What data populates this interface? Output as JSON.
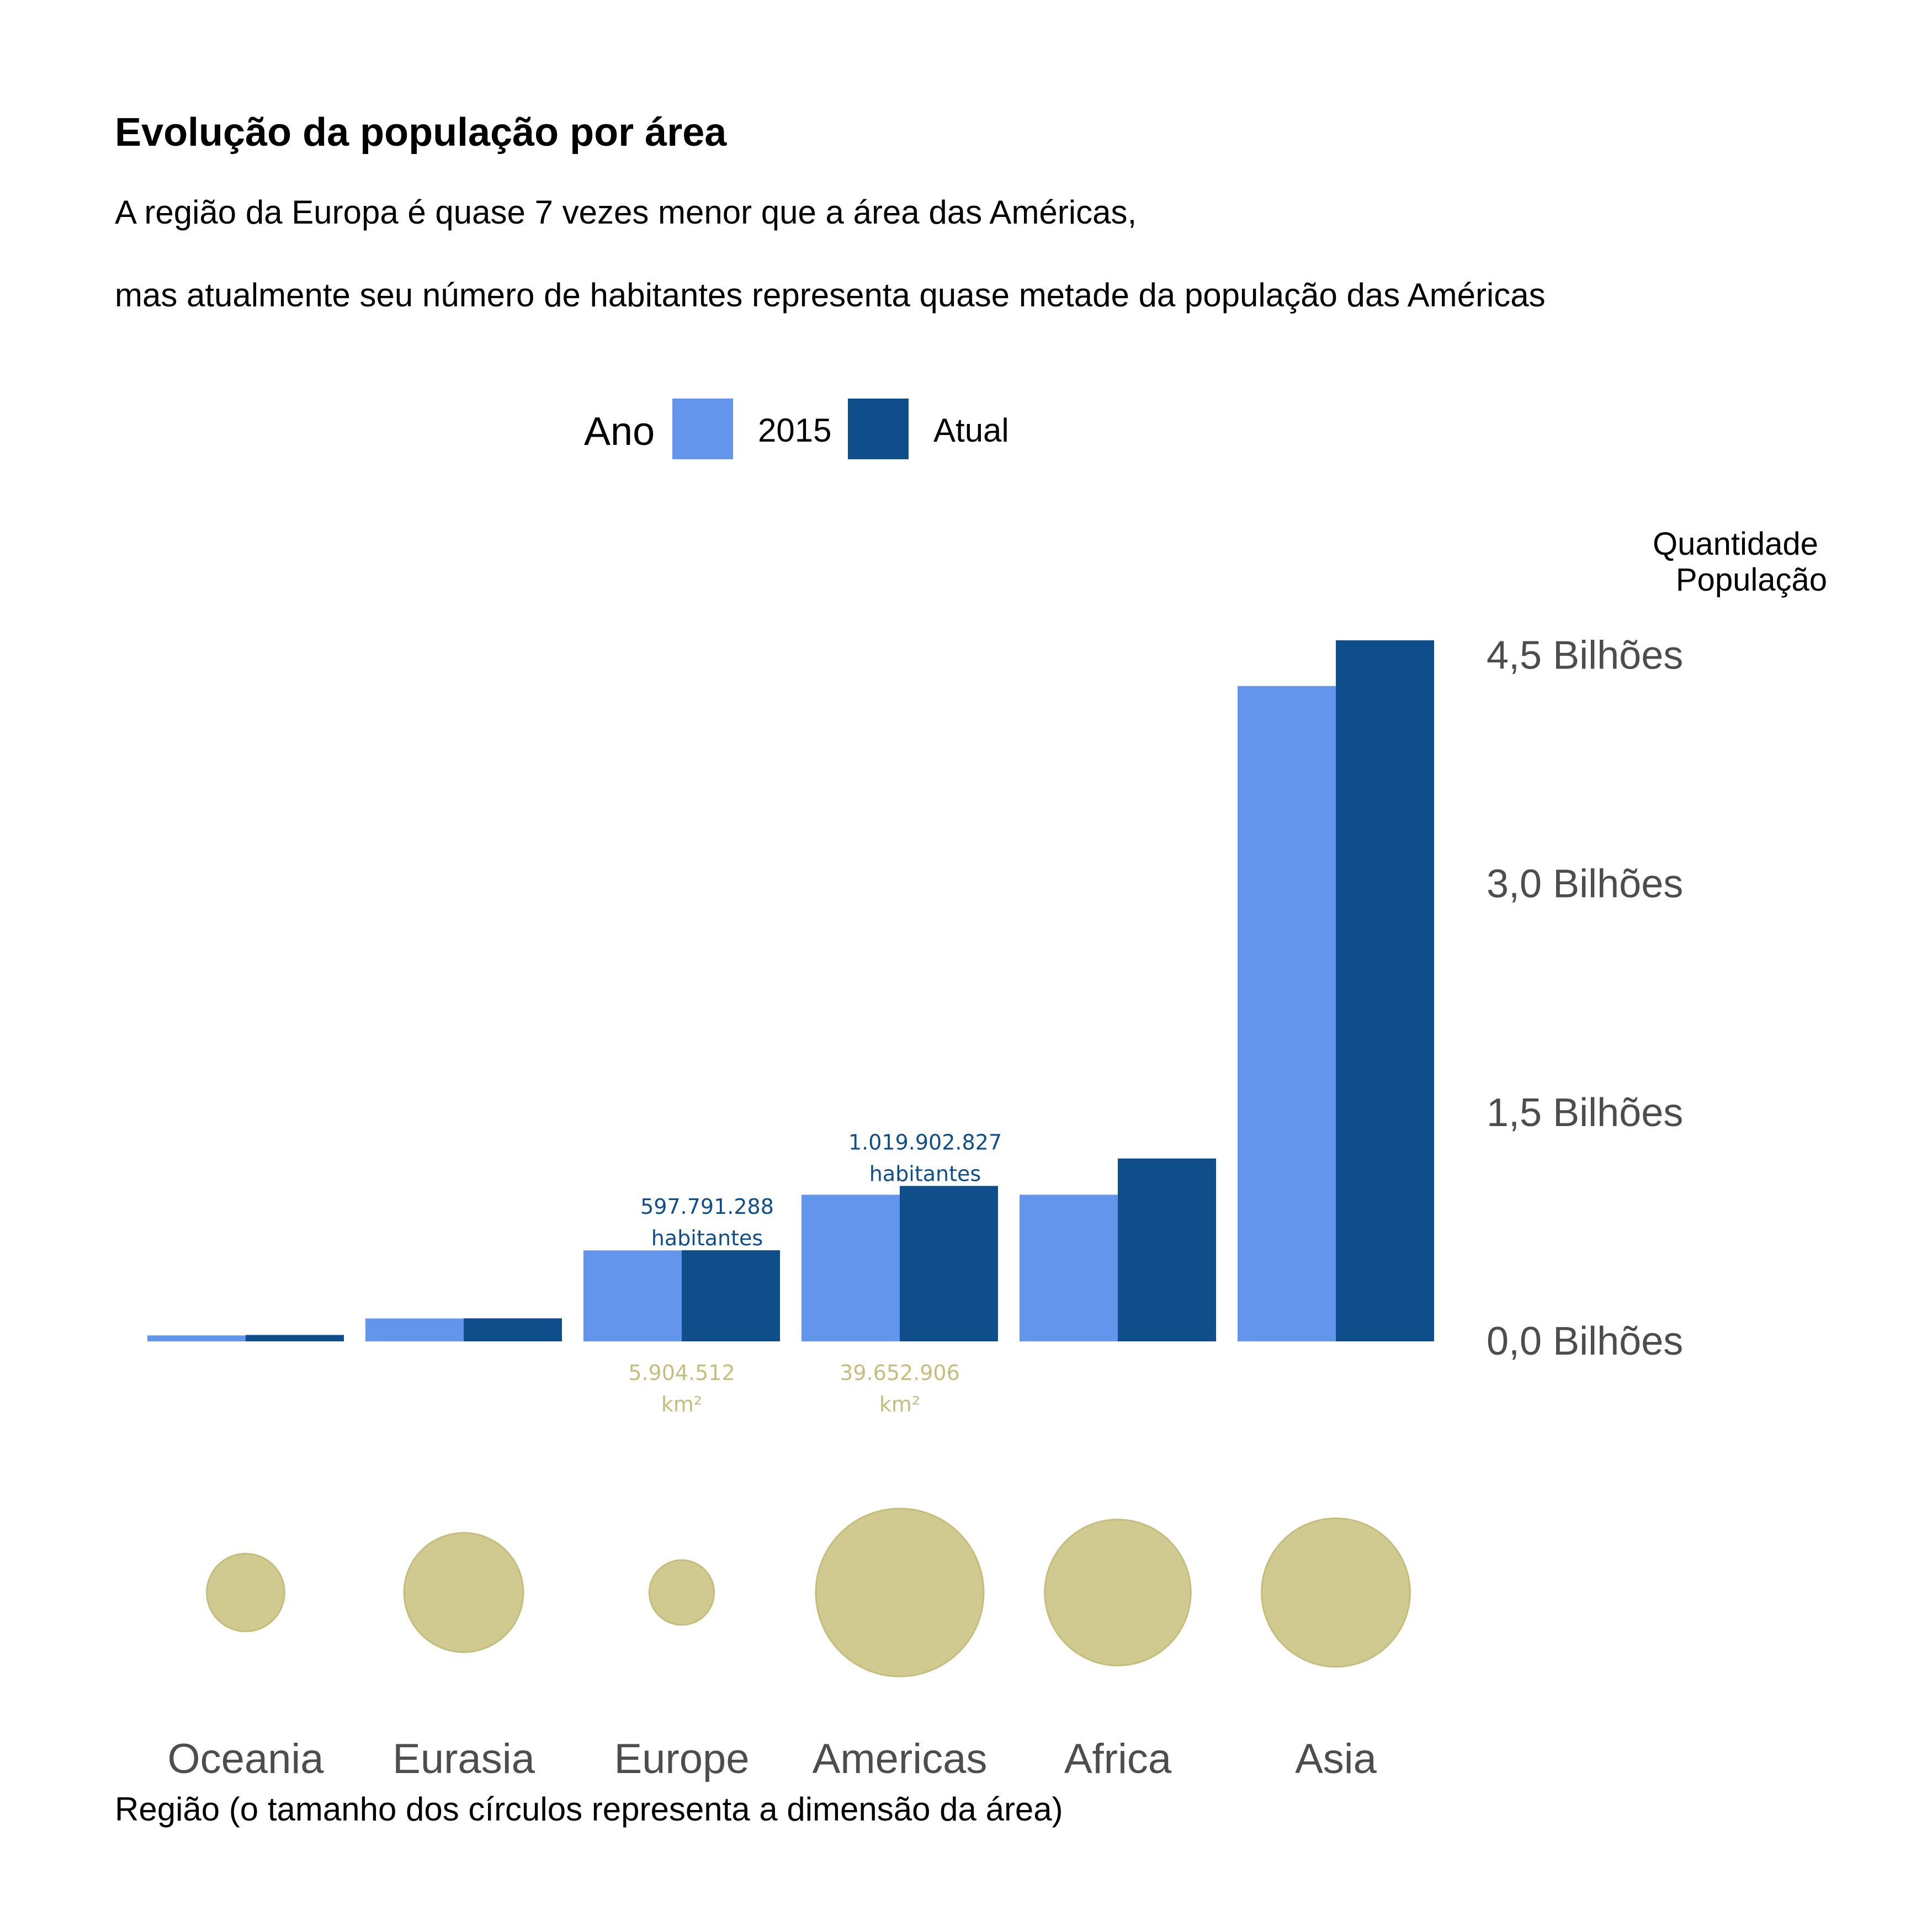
{
  "chart_data": {
    "type": "bar",
    "title": "Evolução da população por área",
    "subtitle_lines": [
      "A região da Europa é quase 7 vezes menor que a área das Américas,",
      "mas atualmente seu número de habitantes representa quase metade da população das Américas"
    ],
    "legend": {
      "title": "Ano",
      "position": "top",
      "entries": [
        {
          "label": "2015",
          "color": "#6495ed"
        },
        {
          "label": "Atual",
          "color": "#104e8b"
        }
      ]
    },
    "categories": [
      "Oceania",
      "Eurasia",
      "Europe",
      "Americas",
      "Africa",
      "Asia"
    ],
    "series": [
      {
        "name": "2015",
        "color": "#6495ed",
        "values": [
          39000000,
          150000000,
          597000000,
          962000000,
          962000000,
          4300000000
        ]
      },
      {
        "name": "Atual",
        "color": "#104e8b",
        "values": [
          42000000,
          151000000,
          597791288,
          1019902827,
          1200000000,
          4600000000
        ]
      }
    ],
    "area_km2": [
      8500000,
      20000000,
      5904512,
      39652906,
      30000000,
      31000000
    ],
    "area_color": "#cdc78a",
    "ylabel_lines": [
      "Quantidade",
      "População"
    ],
    "y_axis_position": "right",
    "ylim": [
      0,
      4600000000
    ],
    "y_ticks": [
      {
        "value": 0,
        "label": "0,0 Bilhões"
      },
      {
        "value": 1500000000,
        "label": "1,5 Bilhões"
      },
      {
        "value": 3000000000,
        "label": "3,0 Bilhões"
      },
      {
        "value": 4500000000,
        "label": "4,5 Bilhões"
      }
    ],
    "xlabel": "Região (o tamanho dos círculos representa a dimensão da área)",
    "grid": false,
    "annotations": [
      {
        "category": "Europe",
        "series": "Atual",
        "kind": "population",
        "lines": [
          "597.791.288",
          "habitantes"
        ],
        "color": "#104e8b"
      },
      {
        "category": "Americas",
        "series": "Atual",
        "kind": "population",
        "lines": [
          "1.019.902.827",
          "habitantes"
        ],
        "color": "#104e8b"
      },
      {
        "category": "Europe",
        "kind": "area",
        "lines": [
          "5.904.512",
          "km²"
        ],
        "color": "#c4be7e"
      },
      {
        "category": "Americas",
        "kind": "area",
        "lines": [
          "39.652.906",
          "km²"
        ],
        "color": "#c4be7e"
      }
    ]
  }
}
